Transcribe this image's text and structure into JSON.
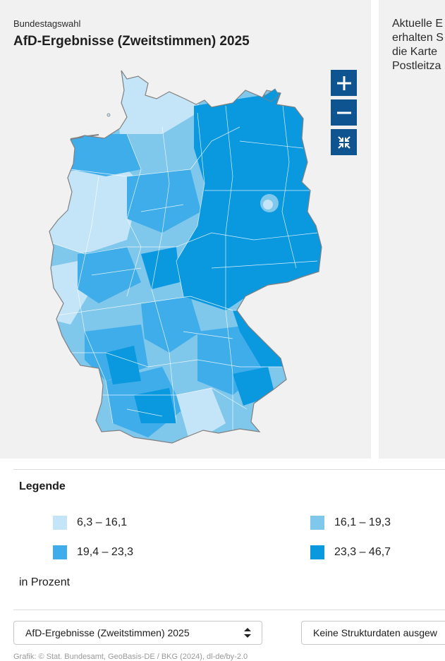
{
  "header": {
    "kicker": "Bundestagswahl",
    "title": "AfD-Ergebnisse (Zweitstimmen) 2025"
  },
  "side_text": {
    "lines": [
      "Aktuelle E",
      "erhalten S",
      "die Karte ",
      "Postleitza"
    ]
  },
  "zoom_controls": {
    "zoom_in": "+",
    "zoom_out": "−",
    "reset": "reset-view"
  },
  "map": {
    "colors": {
      "background": "#f1f1f1",
      "border": "#808080",
      "c1": "#c4e4f7",
      "c2": "#7fc7eb",
      "c3": "#3fadea",
      "c4": "#0a98df"
    }
  },
  "legend": {
    "title": "Legende",
    "unit": "in Prozent",
    "items": [
      {
        "label": "6,3 – 16,1",
        "color": "#c4e4f7"
      },
      {
        "label": "16,1 – 19,3",
        "color": "#7fc7eb"
      },
      {
        "label": "19,4 – 23,3",
        "color": "#3fadea"
      },
      {
        "label": "23,3 – 46,7",
        "color": "#0a98df"
      }
    ]
  },
  "controls": {
    "dataset_select": "AfD-Ergebnisse (Zweitstimmen) 2025",
    "structure_select": "Keine Strukturdaten ausgew"
  },
  "source": "Grafik: © Stat. Bundesamt, GeoBasis-DE / BKG (2024), dl-de/by-2.0"
}
